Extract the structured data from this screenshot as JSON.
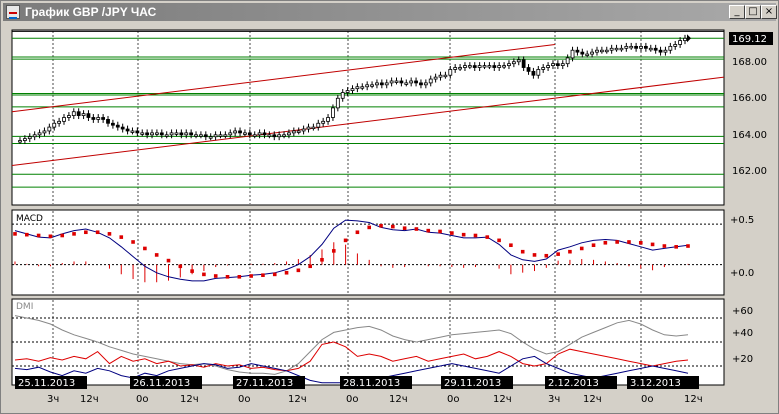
{
  "window": {
    "title": "График GBP /JPY  ЧАС",
    "minimize_glyph": "_",
    "maximize_glyph": "□",
    "close_glyph": "×"
  },
  "colors": {
    "bg": "#d4d0c8",
    "plot_bg": "#ffffff",
    "grid_h": "#008000",
    "grid_v": "#4a4a4a",
    "candle": "#000000",
    "channel": "#c00000",
    "macd_line": "#000080",
    "signal": "#dd0000",
    "dmi_adx": "#888888",
    "dmi_plus": "#dd0000",
    "dmi_minus": "#000080"
  },
  "price_panel": {
    "ticks": [
      "169.12",
      "168.00",
      "166.00",
      "164.00",
      "162.00"
    ],
    "current_price": "169.12"
  },
  "macd_panel": {
    "label": "MACD",
    "ticks": [
      "+0.5",
      "+0.0"
    ]
  },
  "dmi_panel": {
    "label": "DMI",
    "ticks": [
      "+60",
      "+40",
      "+20"
    ]
  },
  "date_labels": [
    "25.11.2013",
    "26.11.2013",
    "27.11.2013",
    "28.11.2013",
    "29.11.2013",
    "2.12.2013",
    "3.12.2013"
  ],
  "hour_labels": [
    [
      "3ч",
      "12ч"
    ],
    [
      "0о",
      "12ч"
    ],
    [
      "0о",
      "12ч"
    ],
    [
      "0о",
      "12ч"
    ],
    [
      "0о",
      "12ч"
    ],
    [
      "3ч",
      "12ч"
    ],
    [
      "0о",
      "12ч"
    ]
  ],
  "chart_data": {
    "type": "candlestick",
    "symbol": "GBP/JPY",
    "timeframe": "ЧАС",
    "ylim": [
      160.5,
      169.5
    ],
    "close": [
      163.8,
      163.9,
      164.0,
      164.1,
      164.2,
      164.3,
      164.5,
      164.7,
      164.8,
      165.0,
      165.1,
      165.3,
      165.1,
      165.2,
      165.0,
      164.9,
      165.0,
      164.9,
      164.7,
      164.6,
      164.5,
      164.4,
      164.3,
      164.3,
      164.2,
      164.2,
      164.1,
      164.2,
      164.2,
      164.1,
      164.1,
      164.2,
      164.2,
      164.1,
      164.2,
      164.1,
      164.1,
      164.1,
      164.0,
      164.0,
      164.1,
      164.1,
      164.1,
      164.2,
      164.3,
      164.2,
      164.2,
      164.1,
      164.1,
      164.2,
      164.1,
      164.1,
      164.0,
      164.1,
      164.1,
      164.2,
      164.3,
      164.3,
      164.4,
      164.5,
      164.5,
      164.7,
      164.8,
      165.0,
      165.5,
      166.0,
      166.3,
      166.4,
      166.5,
      166.6,
      166.6,
      166.7,
      166.7,
      166.8,
      166.7,
      166.8,
      166.9,
      166.9,
      166.8,
      166.8,
      166.9,
      166.8,
      166.7,
      166.8,
      167.0,
      167.1,
      167.2,
      167.2,
      167.5,
      167.6,
      167.6,
      167.7,
      167.7,
      167.6,
      167.7,
      167.7,
      167.7,
      167.6,
      167.7,
      167.7,
      167.8,
      167.9,
      168.0,
      167.6,
      167.4,
      167.2,
      167.5,
      167.6,
      167.7,
      167.8,
      167.7,
      167.8,
      168.1,
      168.5,
      168.4,
      168.3,
      168.3,
      168.4,
      168.5,
      168.5,
      168.5,
      168.6,
      168.6,
      168.6,
      168.7,
      168.7,
      168.6,
      168.7,
      168.6,
      168.6,
      168.5,
      168.4,
      168.5,
      168.7,
      168.8,
      169.0,
      169.12
    ],
    "horizontal_levels": [
      169.48,
      169.12,
      168.15,
      168.04,
      166.25,
      166.17,
      165.55,
      164.02,
      163.65,
      162.05,
      161.38
    ],
    "channel_upper": {
      "from": 165.3,
      "to": 168.8
    },
    "channel_lower": {
      "from": 162.5,
      "to": 167.1
    },
    "macd": {
      "ylim": [
        -0.35,
        0.65
      ],
      "line": [
        0.42,
        0.38,
        0.34,
        0.33,
        0.38,
        0.42,
        0.44,
        0.4,
        0.33,
        0.22,
        0.1,
        -0.02,
        -0.1,
        -0.15,
        -0.18,
        -0.2,
        -0.2,
        -0.17,
        -0.16,
        -0.15,
        -0.13,
        -0.12,
        -0.1,
        -0.06,
        0.0,
        0.1,
        0.25,
        0.45,
        0.55,
        0.54,
        0.52,
        0.46,
        0.43,
        0.42,
        0.44,
        0.4,
        0.39,
        0.36,
        0.33,
        0.33,
        0.34,
        0.25,
        0.12,
        0.06,
        0.04,
        0.07,
        0.18,
        0.22,
        0.27,
        0.3,
        0.31,
        0.3,
        0.26,
        0.22,
        0.18,
        0.2,
        0.22,
        0.24
      ],
      "signal": [
        0.38,
        0.37,
        0.36,
        0.35,
        0.36,
        0.38,
        0.4,
        0.4,
        0.38,
        0.34,
        0.28,
        0.2,
        0.12,
        0.05,
        -0.02,
        -0.08,
        -0.12,
        -0.14,
        -0.15,
        -0.15,
        -0.14,
        -0.13,
        -0.12,
        -0.1,
        -0.07,
        -0.02,
        0.06,
        0.17,
        0.3,
        0.4,
        0.46,
        0.48,
        0.47,
        0.45,
        0.44,
        0.42,
        0.41,
        0.39,
        0.37,
        0.36,
        0.34,
        0.3,
        0.24,
        0.16,
        0.12,
        0.11,
        0.13,
        0.16,
        0.2,
        0.24,
        0.27,
        0.28,
        0.28,
        0.27,
        0.25,
        0.23,
        0.22,
        0.23
      ]
    },
    "dmi": {
      "ylim": [
        5,
        75
      ],
      "adx": [
        62,
        60,
        58,
        55,
        50,
        46,
        43,
        40,
        36,
        33,
        30,
        28,
        26,
        24,
        22,
        21,
        22,
        20,
        17,
        15,
        14,
        14,
        13,
        16,
        22,
        32,
        42,
        48,
        50,
        52,
        53,
        50,
        45,
        42,
        40,
        42,
        44,
        46,
        47,
        48,
        49,
        50,
        47,
        40,
        34,
        30,
        32,
        38,
        44,
        48,
        52,
        56,
        58,
        55,
        50,
        46,
        45,
        46
      ],
      "plus_di": [
        25,
        26,
        24,
        27,
        25,
        28,
        26,
        32,
        22,
        28,
        24,
        26,
        22,
        24,
        20,
        21,
        19,
        22,
        20,
        21,
        18,
        19,
        17,
        16,
        18,
        24,
        38,
        40,
        36,
        28,
        30,
        28,
        24,
        26,
        28,
        24,
        26,
        28,
        30,
        26,
        28,
        32,
        28,
        22,
        20,
        22,
        30,
        34,
        32,
        30,
        28,
        26,
        24,
        22,
        20,
        22,
        24,
        25
      ],
      "minus_di": [
        18,
        17,
        19,
        15,
        12,
        16,
        14,
        18,
        16,
        12,
        10,
        14,
        12,
        16,
        18,
        20,
        22,
        21,
        18,
        19,
        22,
        20,
        18,
        16,
        12,
        8,
        6,
        6,
        6,
        7,
        8,
        10,
        12,
        14,
        16,
        18,
        20,
        22,
        20,
        18,
        16,
        14,
        20,
        26,
        28,
        22,
        18,
        14,
        12,
        10,
        12,
        14,
        16,
        18,
        20,
        18,
        16,
        14
      ]
    }
  }
}
